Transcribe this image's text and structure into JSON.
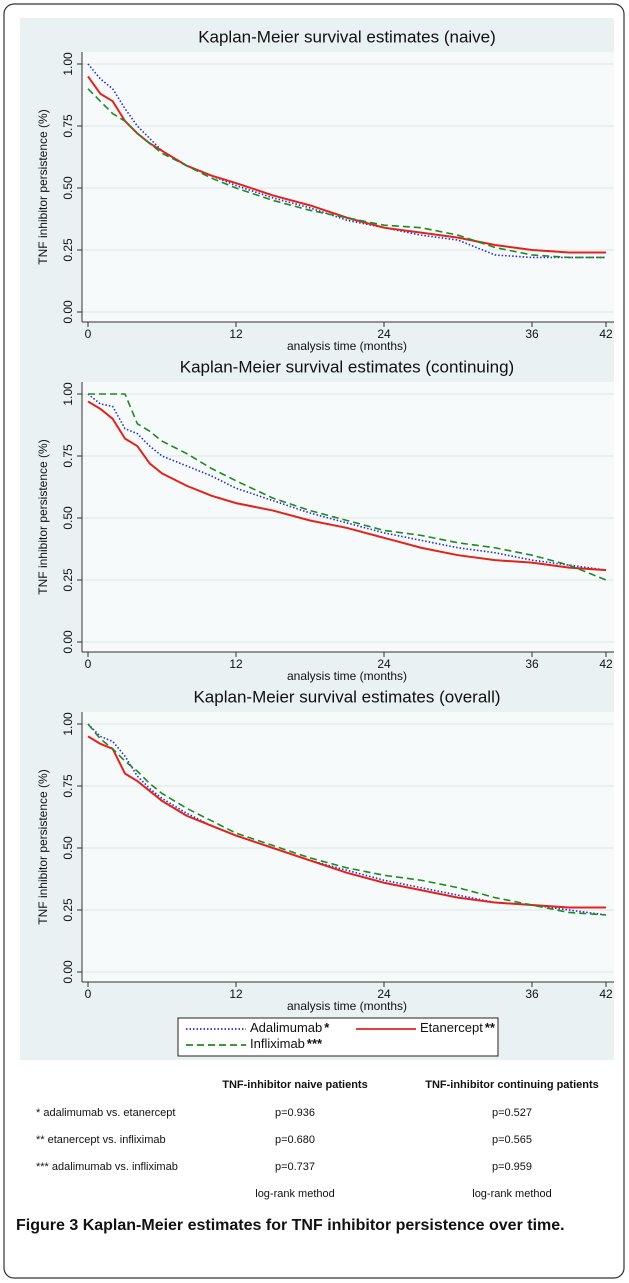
{
  "chart_data": [
    {
      "type": "line",
      "title": "Kaplan-Meier survival estimates (naive)",
      "x_label": "analysis time (months)",
      "y_label": "TNF inhibitor persistence (%)",
      "x": [
        0,
        1,
        2,
        3,
        4,
        5,
        6,
        8,
        10,
        12,
        15,
        18,
        21,
        24,
        27,
        30,
        33,
        36,
        39,
        42
      ],
      "xlim": [
        0,
        42
      ],
      "xticks": [
        0,
        12,
        24,
        36,
        42
      ],
      "ylim": [
        0,
        1
      ],
      "yticks": [
        {
          "value": 0,
          "label": "0.00"
        },
        {
          "value": 0.25,
          "label": "0.25"
        },
        {
          "value": 0.5,
          "label": "0.50"
        },
        {
          "value": 0.75,
          "label": "0.75"
        },
        {
          "value": 1,
          "label": "1.00"
        }
      ],
      "grid": true,
      "series": [
        {
          "name": "Adalimumab",
          "note": "*",
          "color": "#2b2bd0",
          "dash": "dotted",
          "values": [
            1.0,
            0.94,
            0.9,
            0.82,
            0.75,
            0.7,
            0.65,
            0.59,
            0.55,
            0.51,
            0.46,
            0.42,
            0.37,
            0.34,
            0.31,
            0.29,
            0.23,
            0.22,
            0.22,
            0.22
          ]
        },
        {
          "name": "Etanercept",
          "note": "**",
          "color": "#e3231b",
          "dash": "solid",
          "values": [
            0.95,
            0.88,
            0.85,
            0.77,
            0.72,
            0.68,
            0.65,
            0.59,
            0.55,
            0.52,
            0.47,
            0.43,
            0.38,
            0.34,
            0.32,
            0.3,
            0.27,
            0.25,
            0.24,
            0.24
          ]
        },
        {
          "name": "Infliximab",
          "note": "***",
          "color": "#1f8a1f",
          "dash": "dashed",
          "values": [
            0.9,
            0.85,
            0.8,
            0.77,
            0.72,
            0.68,
            0.64,
            0.59,
            0.54,
            0.5,
            0.45,
            0.41,
            0.38,
            0.35,
            0.34,
            0.31,
            0.26,
            0.23,
            0.22,
            0.22
          ]
        }
      ]
    },
    {
      "type": "line",
      "title": "Kaplan-Meier survival estimates (continuing)",
      "x_label": "analysis time (months)",
      "y_label": "TNF inhibitor persistence (%)",
      "x": [
        0,
        1,
        2,
        3,
        4,
        5,
        6,
        8,
        10,
        12,
        15,
        18,
        21,
        24,
        27,
        30,
        33,
        36,
        39,
        42
      ],
      "xlim": [
        0,
        42
      ],
      "xticks": [
        0,
        12,
        24,
        36,
        42
      ],
      "ylim": [
        0,
        1
      ],
      "yticks": [
        {
          "value": 0,
          "label": "0.00"
        },
        {
          "value": 0.25,
          "label": "0.25"
        },
        {
          "value": 0.5,
          "label": "0.50"
        },
        {
          "value": 0.75,
          "label": "0.75"
        },
        {
          "value": 1,
          "label": "1.00"
        }
      ],
      "grid": true,
      "series": [
        {
          "name": "Adalimumab",
          "note": "*",
          "color": "#2b2bd0",
          "dash": "dotted",
          "values": [
            1.0,
            0.96,
            0.95,
            0.86,
            0.84,
            0.79,
            0.75,
            0.71,
            0.67,
            0.62,
            0.57,
            0.52,
            0.48,
            0.44,
            0.41,
            0.38,
            0.36,
            0.33,
            0.31,
            0.29
          ]
        },
        {
          "name": "Etanercept",
          "note": "**",
          "color": "#e3231b",
          "dash": "solid",
          "values": [
            0.97,
            0.94,
            0.9,
            0.82,
            0.79,
            0.72,
            0.68,
            0.63,
            0.59,
            0.56,
            0.53,
            0.49,
            0.46,
            0.42,
            0.38,
            0.35,
            0.33,
            0.32,
            0.3,
            0.29
          ]
        },
        {
          "name": "Infliximab",
          "note": "***",
          "color": "#1f8a1f",
          "dash": "dashed",
          "values": [
            1.0,
            1.0,
            1.0,
            1.0,
            0.88,
            0.85,
            0.81,
            0.76,
            0.7,
            0.65,
            0.58,
            0.53,
            0.49,
            0.45,
            0.43,
            0.4,
            0.38,
            0.35,
            0.31,
            0.25
          ]
        }
      ]
    },
    {
      "type": "line",
      "title": "Kaplan-Meier survival estimates (overall)",
      "x_label": "analysis time (months)",
      "y_label": "TNF inhibitor persistence (%)",
      "x": [
        0,
        1,
        2,
        3,
        4,
        5,
        6,
        8,
        10,
        12,
        15,
        18,
        21,
        24,
        27,
        30,
        33,
        36,
        39,
        42
      ],
      "xlim": [
        0,
        42
      ],
      "xticks": [
        0,
        12,
        24,
        36,
        42
      ],
      "ylim": [
        0,
        1
      ],
      "yticks": [
        {
          "value": 0,
          "label": "0.00"
        },
        {
          "value": 0.25,
          "label": "0.25"
        },
        {
          "value": 0.5,
          "label": "0.50"
        },
        {
          "value": 0.75,
          "label": "0.75"
        },
        {
          "value": 1,
          "label": "1.00"
        }
      ],
      "grid": true,
      "legend": "bottom",
      "series": [
        {
          "name": "Adalimumab",
          "note": "*",
          "color": "#2b2bd0",
          "dash": "dotted",
          "values": [
            1.0,
            0.95,
            0.93,
            0.87,
            0.79,
            0.74,
            0.7,
            0.64,
            0.59,
            0.55,
            0.5,
            0.45,
            0.41,
            0.37,
            0.34,
            0.31,
            0.28,
            0.27,
            0.25,
            0.23
          ]
        },
        {
          "name": "Etanercept",
          "note": "**",
          "color": "#e3231b",
          "dash": "solid",
          "values": [
            0.95,
            0.92,
            0.9,
            0.8,
            0.77,
            0.73,
            0.69,
            0.63,
            0.59,
            0.55,
            0.5,
            0.45,
            0.4,
            0.36,
            0.33,
            0.3,
            0.28,
            0.27,
            0.26,
            0.26
          ]
        },
        {
          "name": "Infliximab",
          "note": "***",
          "color": "#1f8a1f",
          "dash": "dashed",
          "values": [
            1.0,
            0.94,
            0.9,
            0.85,
            0.81,
            0.76,
            0.72,
            0.66,
            0.61,
            0.56,
            0.51,
            0.46,
            0.42,
            0.39,
            0.37,
            0.34,
            0.3,
            0.27,
            0.24,
            0.23
          ]
        }
      ]
    }
  ],
  "table": {
    "header": [
      "TNF-inhibitor naive patients",
      "TNF-inhibitor continuing patients"
    ],
    "rows": [
      [
        "* adalimumab vs. etanercept",
        "p=0.936",
        "p=0.527"
      ],
      [
        "** etanercept vs. infliximab",
        "p=0.680",
        "p=0.565"
      ],
      [
        "*** adalimumab vs. infliximab",
        "p=0.737",
        "p=0.959"
      ]
    ],
    "method": [
      "log-rank method",
      "log-rank method"
    ]
  },
  "caption": {
    "label": "Figure 3",
    "text": "Kaplan-Meier estimates for TNF inhibitor persistence over time."
  }
}
